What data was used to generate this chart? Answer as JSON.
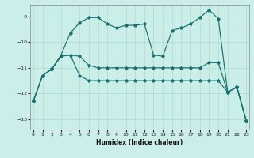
{
  "xlabel": "Humidex (Indice chaleur)",
  "bg_color": "#cceee8",
  "line_color": "#1a7070",
  "grid_color": "#aaddcc",
  "xlim": [
    -0.3,
    23.3
  ],
  "ylim": [
    -13.4,
    -8.55
  ],
  "yticks": [
    -13,
    -12,
    -11,
    -10,
    -9
  ],
  "xticks": [
    0,
    1,
    2,
    3,
    4,
    5,
    6,
    7,
    8,
    9,
    10,
    11,
    12,
    13,
    14,
    15,
    16,
    17,
    18,
    19,
    20,
    21,
    22,
    23
  ],
  "s1_x": [
    0,
    1,
    2,
    3,
    4,
    5,
    6,
    7,
    8,
    9,
    10,
    11,
    12,
    13,
    14,
    15,
    16,
    17,
    18,
    19,
    20,
    21,
    22,
    23
  ],
  "s1_y": [
    -12.3,
    -11.3,
    -11.05,
    -10.5,
    -9.65,
    -9.25,
    -9.05,
    -9.05,
    -9.3,
    -9.45,
    -9.35,
    -9.35,
    -9.3,
    -10.5,
    -10.55,
    -9.55,
    -9.45,
    -9.3,
    -9.05,
    -8.75,
    -9.1,
    -11.95,
    -11.75,
    -13.05
  ],
  "s2_x": [
    0,
    1,
    2,
    3,
    4,
    5,
    6,
    7,
    8,
    9,
    10,
    11,
    12,
    13,
    14,
    15,
    16,
    17,
    18,
    19,
    20,
    21,
    22,
    23
  ],
  "s2_y": [
    -12.3,
    -11.3,
    -11.05,
    -10.55,
    -10.5,
    -10.55,
    -10.9,
    -11.0,
    -11.0,
    -11.0,
    -11.0,
    -11.0,
    -11.0,
    -11.0,
    -11.0,
    -11.0,
    -11.0,
    -11.0,
    -11.0,
    -10.8,
    -10.8,
    -11.95,
    -11.75,
    -13.05
  ],
  "s3_x": [
    0,
    1,
    2,
    3,
    4,
    5,
    6,
    7,
    8,
    9,
    10,
    11,
    12,
    13,
    14,
    15,
    16,
    17,
    18,
    19,
    20,
    21,
    22,
    23
  ],
  "s3_y": [
    -12.3,
    -11.3,
    -11.05,
    -10.55,
    -10.5,
    -11.3,
    -11.5,
    -11.5,
    -11.5,
    -11.5,
    -11.5,
    -11.5,
    -11.5,
    -11.5,
    -11.5,
    -11.5,
    -11.5,
    -11.5,
    -11.5,
    -11.5,
    -11.5,
    -11.95,
    -11.75,
    -13.05
  ]
}
